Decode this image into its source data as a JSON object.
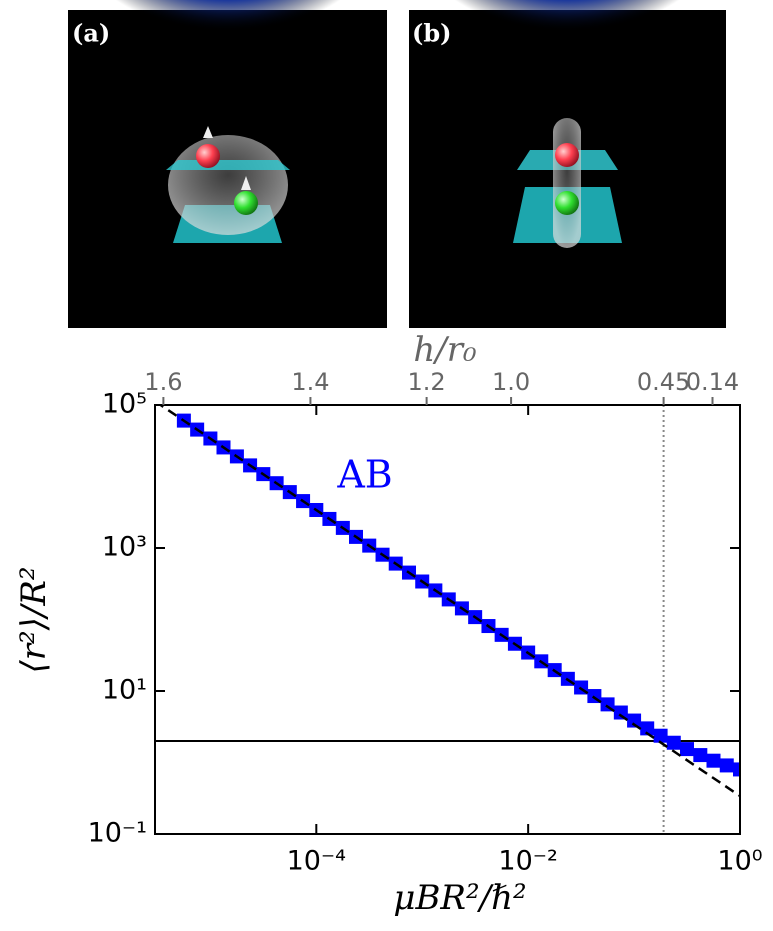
{
  "panels": [
    {
      "label": "(a)"
    },
    {
      "label": "(b)"
    }
  ],
  "chart_data": {
    "type": "scatter",
    "xlabel": "μBR²/ℏ²",
    "ylabel": "⟨r²⟩/R²",
    "x2label": "h/r₀",
    "xscale": "log",
    "yscale": "log",
    "grid": false,
    "xlim": [
      3e-06,
      1
    ],
    "ylim": [
      0.1,
      100000
    ],
    "xticks": [
      {
        "value": 0.0001,
        "label": "10⁻⁴"
      },
      {
        "value": 0.01,
        "label": "10⁻²"
      },
      {
        "value": 1,
        "label": "10⁰"
      }
    ],
    "yticks": [
      {
        "value": 0.1,
        "label": "10⁻¹"
      },
      {
        "value": 10,
        "label": "10¹"
      },
      {
        "value": 1000,
        "label": "10³"
      },
      {
        "value": 100000,
        "label": "10⁵"
      }
    ],
    "x2ticks": [
      1.6,
      1.4,
      1.2,
      {
        "value": 1,
        "label": "1.0"
      },
      0.45,
      0.14
    ],
    "x2tick_positions": [
      3.6e-06,
      8.8e-05,
      0.0011,
      0.0069,
      0.19,
      0.55
    ],
    "hlines": [
      2
    ],
    "vlines": [
      0.19
    ],
    "series": [
      {
        "name": "AB",
        "color": "#0000ff",
        "marker": "square",
        "x": [
          5.62e-06,
          7.5e-06,
          1e-05,
          1.33e-05,
          1.78e-05,
          2.37e-05,
          3.16e-05,
          4.22e-05,
          5.62e-05,
          7.5e-05,
          0.0001,
          0.000133,
          0.000178,
          0.000237,
          0.000316,
          0.000422,
          0.000562,
          0.00075,
          0.001,
          0.00133,
          0.00178,
          0.00237,
          0.00316,
          0.00422,
          0.00562,
          0.0075,
          0.01,
          0.0133,
          0.0178,
          0.0237,
          0.0316,
          0.0422,
          0.0562,
          0.075,
          0.1,
          0.133,
          0.178,
          0.237,
          0.316,
          0.422,
          0.562,
          0.75,
          1
        ],
        "values": [
          60500,
          45300,
          34000,
          25500,
          19100,
          14300,
          10800,
          8060,
          6050,
          4530,
          3400,
          2550,
          1910,
          1430,
          1080,
          806,
          605,
          453,
          340,
          255,
          191,
          143,
          108,
          81,
          61,
          45.8,
          34.5,
          26,
          19.6,
          14.8,
          11.2,
          8.5,
          6.5,
          5.0,
          3.86,
          3.0,
          2.37,
          1.89,
          1.54,
          1.27,
          1.06,
          0.91,
          0.8
        ]
      },
      {
        "color": "#000000",
        "style": "dashed",
        "x": [
          3e-06,
          1
        ],
        "values": [
          113000,
          0.34
        ]
      }
    ]
  }
}
